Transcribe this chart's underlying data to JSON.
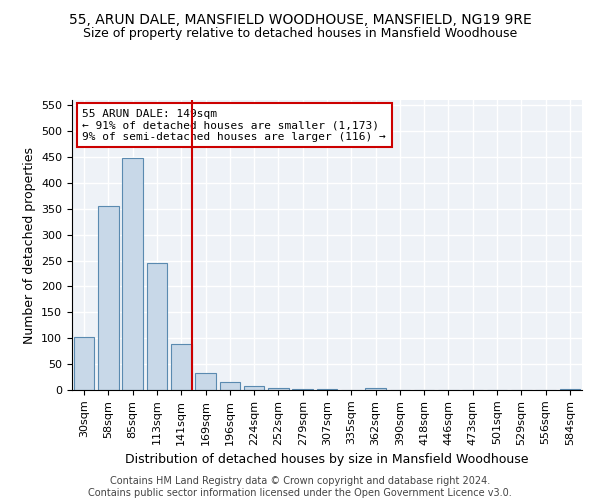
{
  "title": "55, ARUN DALE, MANSFIELD WOODHOUSE, MANSFIELD, NG19 9RE",
  "subtitle": "Size of property relative to detached houses in Mansfield Woodhouse",
  "xlabel": "Distribution of detached houses by size in Mansfield Woodhouse",
  "ylabel": "Number of detached properties",
  "categories": [
    "30sqm",
    "58sqm",
    "85sqm",
    "113sqm",
    "141sqm",
    "169sqm",
    "196sqm",
    "224sqm",
    "252sqm",
    "279sqm",
    "307sqm",
    "335sqm",
    "362sqm",
    "390sqm",
    "418sqm",
    "446sqm",
    "473sqm",
    "501sqm",
    "529sqm",
    "556sqm",
    "584sqm"
  ],
  "values": [
    102,
    355,
    448,
    245,
    88,
    32,
    15,
    8,
    3,
    1,
    1,
    0,
    3,
    0,
    0,
    0,
    0,
    0,
    0,
    0,
    2
  ],
  "bar_color": "#c8d8e8",
  "bar_edge_color": "#5a8ab0",
  "vline_color": "#cc0000",
  "annotation_text": "55 ARUN DALE: 149sqm\n← 91% of detached houses are smaller (1,173)\n9% of semi-detached houses are larger (116) →",
  "annotation_box_color": "#cc0000",
  "ylim": [
    0,
    560
  ],
  "yticks": [
    0,
    50,
    100,
    150,
    200,
    250,
    300,
    350,
    400,
    450,
    500,
    550
  ],
  "footer_line1": "Contains HM Land Registry data © Crown copyright and database right 2024.",
  "footer_line2": "Contains public sector information licensed under the Open Government Licence v3.0.",
  "bg_color": "#eef2f7",
  "grid_color": "#ffffff",
  "title_fontsize": 10,
  "subtitle_fontsize": 9,
  "axis_label_fontsize": 9,
  "tick_fontsize": 8,
  "annotation_fontsize": 8,
  "footer_fontsize": 7
}
